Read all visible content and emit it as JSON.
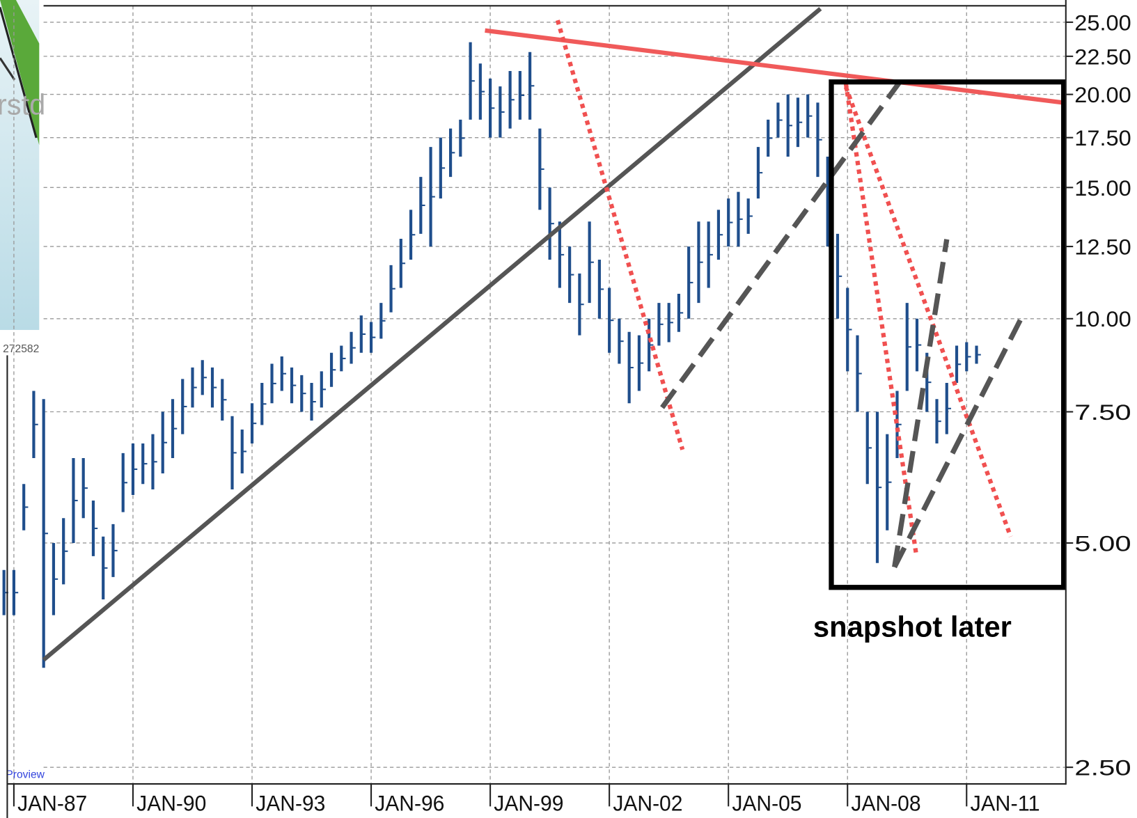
{
  "chart_data": {
    "type": "range",
    "log_scale": true,
    "grid": true,
    "annotation": "snapshot later",
    "watermark": "Proview",
    "inset_texts": [
      "rstd",
      "272582"
    ],
    "xlim": [
      "1986-11",
      "2013-07"
    ],
    "xticks": [
      {
        "value": "1987-01",
        "label": "JAN-87"
      },
      {
        "value": "1990-01",
        "label": "JAN-90"
      },
      {
        "value": "1993-01",
        "label": "JAN-93"
      },
      {
        "value": "1996-01",
        "label": "JAN-96"
      },
      {
        "value": "1999-01",
        "label": "JAN-99"
      },
      {
        "value": "2002-01",
        "label": "JAN-02"
      },
      {
        "value": "2005-01",
        "label": "JAN-05"
      },
      {
        "value": "2008-01",
        "label": "JAN-08"
      },
      {
        "value": "2011-01",
        "label": "JAN-11"
      }
    ],
    "ylim": [
      2.38,
      26.3
    ],
    "yticks": [
      {
        "value": 2.5,
        "label": "2.50"
      },
      {
        "value": 5,
        "label": "5.00"
      },
      {
        "value": 7.5,
        "label": "7.50"
      },
      {
        "value": 10,
        "label": "10.00"
      },
      {
        "value": 12.5,
        "label": "12.50"
      },
      {
        "value": 15,
        "label": "15.00"
      },
      {
        "value": 17.5,
        "label": "17.50"
      },
      {
        "value": 20,
        "label": "20.00"
      },
      {
        "value": 22.5,
        "label": "22.50"
      },
      {
        "value": 25,
        "label": "25.00"
      }
    ],
    "x": [
      "1986-10",
      "1987-01",
      "1987-04",
      "1987-07",
      "1987-10",
      "1988-01",
      "1988-04",
      "1988-07",
      "1988-10",
      "1989-01",
      "1989-04",
      "1989-07",
      "1989-10",
      "1990-01",
      "1990-04",
      "1990-07",
      "1990-10",
      "1991-01",
      "1991-04",
      "1991-07",
      "1991-10",
      "1992-01",
      "1992-04",
      "1992-07",
      "1992-10",
      "1993-01",
      "1993-04",
      "1993-07",
      "1993-10",
      "1994-01",
      "1994-04",
      "1994-07",
      "1994-10",
      "1995-01",
      "1995-04",
      "1995-07",
      "1995-10",
      "1996-01",
      "1996-04",
      "1996-07",
      "1996-10",
      "1997-01",
      "1997-04",
      "1997-07",
      "1997-10",
      "1998-01",
      "1998-04",
      "1998-07",
      "1998-10",
      "1999-01",
      "1999-04",
      "1999-07",
      "1999-10",
      "2000-01",
      "2000-04",
      "2000-07",
      "2000-10",
      "2001-01",
      "2001-04",
      "2001-07",
      "2001-10",
      "2002-01",
      "2002-04",
      "2002-07",
      "2002-10",
      "2003-01",
      "2003-04",
      "2003-07",
      "2003-10",
      "2004-01",
      "2004-04",
      "2004-07",
      "2004-10",
      "2005-01",
      "2005-04",
      "2005-07",
      "2005-10",
      "2006-01",
      "2006-04",
      "2006-07",
      "2006-10",
      "2007-01",
      "2007-04",
      "2007-07",
      "2007-10",
      "2008-01",
      "2008-04",
      "2008-07",
      "2008-10",
      "2009-01",
      "2009-04",
      "2009-07",
      "2009-10",
      "2010-01",
      "2010-04",
      "2010-07",
      "2010-10",
      "2011-01",
      "2011-04"
    ],
    "series": [
      {
        "color": "#1f4e8c",
        "high": [
          4.6,
          4.6,
          6.0,
          8.0,
          7.8,
          5.0,
          5.4,
          6.5,
          6.5,
          5.7,
          5.1,
          5.3,
          6.6,
          6.8,
          6.8,
          7.0,
          7.5,
          7.8,
          8.3,
          8.6,
          8.8,
          8.6,
          8.3,
          7.4,
          7.1,
          7.7,
          8.2,
          8.7,
          8.9,
          8.6,
          8.4,
          8.2,
          8.5,
          9.0,
          9.2,
          9.6,
          10.1,
          9.9,
          10.5,
          11.8,
          12.8,
          14.0,
          15.5,
          17.0,
          17.5,
          18.0,
          18.5,
          23.5,
          22.0,
          21.0,
          20.5,
          21.5,
          21.5,
          22.8,
          18.0,
          15.0,
          13.5,
          12.5,
          11.5,
          13.5,
          12.0,
          11.0,
          10.0,
          9.6,
          9.5,
          10.0,
          10.5,
          10.5,
          10.8,
          12.5,
          13.5,
          13.5,
          14.0,
          14.5,
          14.8,
          14.5,
          17.0,
          18.5,
          19.5,
          20.0,
          19.8,
          20.0,
          19.5,
          16.5,
          13.0,
          11.0,
          9.5,
          7.5,
          7.5,
          7.0,
          8.0,
          10.5,
          10.0,
          9.0,
          7.8,
          8.2,
          9.2,
          9.3,
          9.2
        ],
        "low": [
          4.0,
          4.0,
          5.2,
          6.5,
          3.4,
          4.0,
          4.4,
          5.0,
          5.4,
          4.8,
          4.2,
          4.5,
          5.5,
          5.8,
          6.0,
          5.9,
          6.2,
          6.5,
          7.0,
          7.6,
          7.9,
          7.6,
          7.3,
          5.9,
          6.2,
          6.8,
          7.2,
          7.7,
          8.0,
          7.7,
          7.5,
          7.3,
          7.6,
          8.1,
          8.5,
          8.7,
          9.0,
          9.0,
          9.4,
          10.2,
          11.0,
          12.0,
          13.0,
          12.5,
          14.5,
          15.5,
          16.5,
          18.5,
          18.5,
          17.5,
          17.5,
          18.0,
          18.5,
          18.5,
          14.0,
          12.0,
          11.0,
          10.5,
          9.5,
          10.5,
          10.0,
          9.0,
          8.7,
          7.7,
          8.0,
          8.5,
          9.2,
          9.3,
          9.6,
          10.0,
          10.5,
          11.0,
          12.0,
          12.5,
          12.5,
          13.0,
          14.5,
          16.5,
          17.5,
          16.5,
          17.0,
          17.5,
          15.5,
          12.5,
          10.0,
          8.5,
          7.5,
          6.0,
          4.7,
          5.2,
          6.5,
          8.0,
          8.5,
          7.5,
          6.8,
          7.0,
          8.2,
          8.5,
          8.7
        ]
      }
    ]
  }
}
